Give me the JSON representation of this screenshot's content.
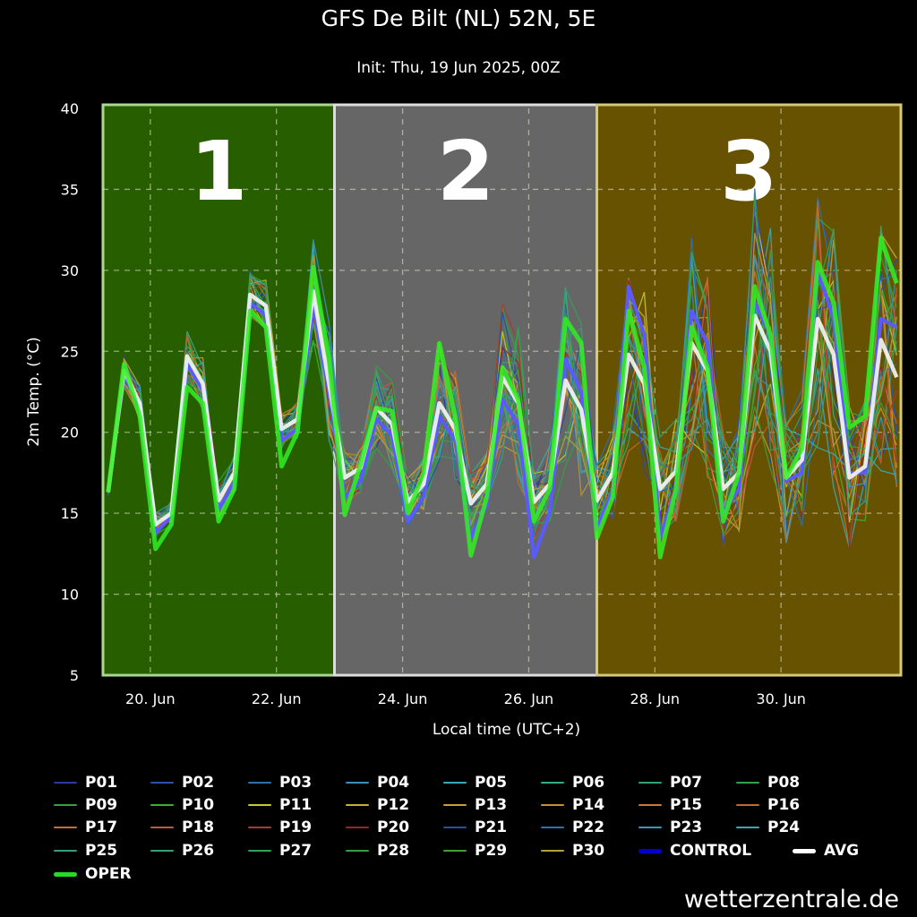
{
  "chart_data": {
    "type": "line",
    "title": "GFS De Bilt (NL) 52N, 5E",
    "subtitle": "Init: Thu, 19 Jun 2025, 00Z",
    "xlabel": "Local time (UTC+2)",
    "ylabel": "2m Temp. (°C)",
    "ylim": [
      5,
      40
    ],
    "yticks": [
      5,
      10,
      15,
      20,
      25,
      30,
      35,
      40
    ],
    "xlim_days_from_20jun": [
      -0.75,
      11.9
    ],
    "xticks": [
      {
        "day": 0,
        "label": "20. Jun"
      },
      {
        "day": 2,
        "label": "22. Jun"
      },
      {
        "day": 4,
        "label": "24. Jun"
      },
      {
        "day": 6,
        "label": "26. Jun"
      },
      {
        "day": 8,
        "label": "28. Jun"
      },
      {
        "day": 10,
        "label": "30. Jun"
      }
    ],
    "grid": true,
    "time_start_days_from_20jun": -0.667,
    "time_step_hours": 6,
    "regions": [
      {
        "label": "1",
        "from_day": -0.75,
        "to_day": 2.92,
        "color": "#275e00",
        "border": "#a8d890"
      },
      {
        "label": "2",
        "from_day": 2.92,
        "to_day": 7.08,
        "color": "#666666",
        "border": "#dddddd"
      },
      {
        "label": "3",
        "from_day": 7.08,
        "to_day": 11.9,
        "color": "#665200",
        "border": "#d6c87a"
      }
    ],
    "series": [
      {
        "name": "AVG",
        "color": "#ffffff",
        "values": [
          16.3,
          23.8,
          21.8,
          14.3,
          15.0,
          24.7,
          23.0,
          15.8,
          17.5,
          28.5,
          27.8,
          20.2,
          20.8,
          28.7,
          23.0,
          17.2,
          17.8,
          21.5,
          20.5,
          15.7,
          16.8,
          21.8,
          20.2,
          15.6,
          16.8,
          23.4,
          21.8,
          15.7,
          16.8,
          23.2,
          21.4,
          15.8,
          17.5,
          24.8,
          23.0,
          16.5,
          17.6,
          25.5,
          23.8,
          16.5,
          17.5,
          27.2,
          25.0,
          17.2,
          18.3,
          27.0,
          24.8,
          17.2,
          17.9,
          25.7,
          23.4
        ]
      },
      {
        "name": "OPER",
        "color": "#22dd22",
        "values": [
          16.3,
          24.2,
          21.0,
          12.8,
          14.3,
          22.8,
          21.8,
          14.5,
          16.5,
          27.5,
          26.5,
          17.9,
          20.0,
          30.2,
          24.5,
          14.9,
          18.0,
          21.5,
          21.3,
          15.0,
          17.5,
          25.5,
          21.0,
          12.4,
          16.0,
          24.0,
          22.0,
          14.5,
          16.5,
          27.0,
          25.5,
          13.5,
          16.0,
          27.5,
          24.0,
          12.3,
          16.5,
          26.5,
          24.0,
          14.5,
          17.5,
          29.0,
          26.0,
          17.2,
          19.0,
          30.5,
          28.0,
          20.3,
          21.0,
          32.0,
          29.2
        ]
      },
      {
        "name": "CONTROL",
        "color": "#0000cc",
        "values": [
          16.3,
          23.6,
          21.5,
          13.8,
          14.8,
          24.2,
          22.6,
          15.2,
          17.0,
          28.0,
          27.2,
          19.5,
          20.2,
          27.8,
          22.5,
          16.0,
          17.0,
          20.8,
          19.8,
          14.5,
          16.0,
          21.0,
          19.5,
          13.5,
          15.5,
          22.0,
          20.5,
          12.3,
          15.0,
          24.5,
          22.5,
          14.0,
          16.5,
          29.0,
          26.0,
          13.5,
          16.5,
          27.5,
          25.5,
          15.0,
          16.5,
          28.0,
          26.0,
          17.0,
          17.5,
          30.0,
          27.0,
          17.5,
          17.5,
          27.0,
          26.5
        ]
      }
    ],
    "members_spread": [
      0.3,
      1.0,
      1.0,
      1.0,
      1.0,
      1.5,
      1.5,
      1.5,
      1.5,
      1.5,
      1.5,
      1.5,
      1.5,
      3.0,
      3.5,
      2.0,
      2.0,
      2.5,
      2.5,
      2.0,
      2.0,
      3.5,
      3.5,
      2.5,
      2.5,
      4.5,
      4.5,
      3.0,
      3.0,
      5.5,
      5.0,
      3.0,
      3.5,
      5.5,
      5.5,
      4.0,
      4.0,
      6.0,
      6.0,
      4.5,
      4.5,
      7.5,
      7.0,
      5.5,
      5.5,
      7.5,
      7.5,
      5.5,
      5.5,
      7.5,
      7.5
    ]
  },
  "legend": [
    {
      "name": "P01",
      "color": "#2b3a9e"
    },
    {
      "name": "P02",
      "color": "#2d52a8"
    },
    {
      "name": "P03",
      "color": "#3170b0"
    },
    {
      "name": "P04",
      "color": "#3890b8"
    },
    {
      "name": "P05",
      "color": "#3ca8b8"
    },
    {
      "name": "P06",
      "color": "#3aa888"
    },
    {
      "name": "P07",
      "color": "#35a070"
    },
    {
      "name": "P08",
      "color": "#35a050"
    },
    {
      "name": "P09",
      "color": "#35a040"
    },
    {
      "name": "P10",
      "color": "#3cb030"
    },
    {
      "name": "P11",
      "color": "#c8c830"
    },
    {
      "name": "P12",
      "color": "#c8b030"
    },
    {
      "name": "P13",
      "color": "#c8a030"
    },
    {
      "name": "P14",
      "color": "#c89030"
    },
    {
      "name": "P15",
      "color": "#c87a30"
    },
    {
      "name": "P16",
      "color": "#c06a30"
    },
    {
      "name": "P17",
      "color": "#c07038"
    },
    {
      "name": "P18",
      "color": "#c05a38"
    },
    {
      "name": "P19",
      "color": "#a83a30"
    },
    {
      "name": "P20",
      "color": "#902828"
    },
    {
      "name": "P21",
      "color": "#2c4aa8"
    },
    {
      "name": "P22",
      "color": "#2f70b0"
    },
    {
      "name": "P23",
      "color": "#3898b8"
    },
    {
      "name": "P24",
      "color": "#3aa8b0"
    },
    {
      "name": "P25",
      "color": "#3a9a80"
    },
    {
      "name": "P26",
      "color": "#3aa070"
    },
    {
      "name": "P27",
      "color": "#35a058"
    },
    {
      "name": "P28",
      "color": "#35a040"
    },
    {
      "name": "P29",
      "color": "#40a030"
    },
    {
      "name": "P30",
      "color": "#b0a040"
    },
    {
      "name": "CONTROL",
      "color": "#0000cc"
    },
    {
      "name": "AVG",
      "color": "#ffffff"
    },
    {
      "name": "OPER",
      "color": "#22dd22"
    }
  ],
  "watermark": "wetterzentrale.de"
}
